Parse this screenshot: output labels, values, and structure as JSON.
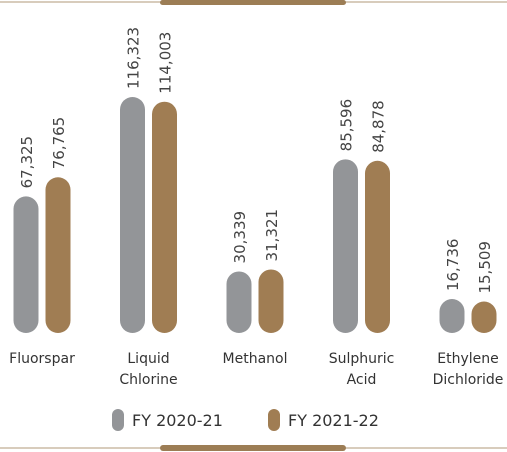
{
  "chart_data": {
    "type": "bar",
    "categories": [
      "Fluorspar",
      "Liquid Chlorine",
      "Methanol",
      "Sulphuric Acid",
      "Ethylene Dichloride"
    ],
    "series": [
      {
        "name": "FY 2020-21",
        "color": "#939598",
        "values": [
          67325,
          116323,
          30339,
          85596,
          16736
        ],
        "value_labels": [
          "67,325",
          "116,323",
          "30,339",
          "85,596",
          "16,736"
        ]
      },
      {
        "name": "FY 2021-22",
        "color": "#a07d53",
        "values": [
          76765,
          114003,
          31321,
          84878,
          15509
        ],
        "value_labels": [
          "76,765",
          "114,003",
          "31,321",
          "84,878",
          "15,509"
        ]
      }
    ]
  }
}
